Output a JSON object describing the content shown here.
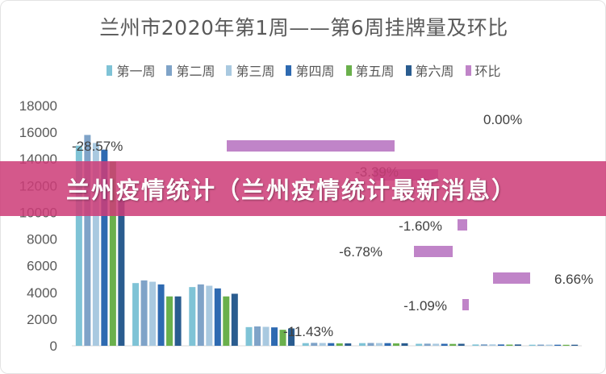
{
  "banner": {
    "text": "兰州疫情统计（兰州疫情统计最新消息）"
  },
  "chart_data": {
    "type": "bar",
    "title": "兰州市2020年第1周——第6周挂牌量及环比",
    "ylim": [
      0,
      18000
    ],
    "yticks": [
      "0",
      "2000",
      "4000",
      "6000",
      "8000",
      "10000",
      "12000",
      "14000",
      "16000",
      "18000"
    ],
    "grid": false,
    "legend_position": "top",
    "colors": [
      "#7fc3d6",
      "#7fa3c8",
      "#a9c9e0",
      "#2e6ab1",
      "#6ab04c",
      "#2a5c8f",
      "#c084c8"
    ],
    "bar_series": [
      {
        "name": "第一周",
        "values": [
          15000,
          4700,
          4400,
          1400,
          200,
          200,
          150,
          100,
          80
        ]
      },
      {
        "name": "第二周",
        "values": [
          15800,
          4900,
          4600,
          1450,
          220,
          210,
          160,
          110,
          90
        ]
      },
      {
        "name": "第三周",
        "values": [
          15200,
          4800,
          4500,
          1420,
          210,
          205,
          155,
          105,
          85
        ]
      },
      {
        "name": "第四周",
        "values": [
          14700,
          4600,
          4300,
          1380,
          200,
          200,
          150,
          100,
          80
        ]
      },
      {
        "name": "第五周",
        "values": [
          13800,
          3700,
          3700,
          1200,
          180,
          180,
          140,
          90,
          75
        ]
      },
      {
        "name": "第六周",
        "values": [
          11000,
          3700,
          3900,
          1300,
          180,
          190,
          150,
          100,
          80
        ]
      }
    ],
    "ratio_series": {
      "name": "环比",
      "points": [
        {
          "label": "-28.57%",
          "value": -28.57
        },
        {
          "label": "-11.43%",
          "value": -11.43
        },
        {
          "label": "-1.09%",
          "value": -1.09
        },
        {
          "label": "-6.78%",
          "value": -6.78
        },
        {
          "label": "-3.39%",
          "value": -3.39
        },
        {
          "label": "-1.60%",
          "value": -1.6
        },
        {
          "label": "6.66%",
          "value": 6.66
        },
        {
          "label": "0.00%",
          "value": 0.0
        }
      ]
    }
  }
}
